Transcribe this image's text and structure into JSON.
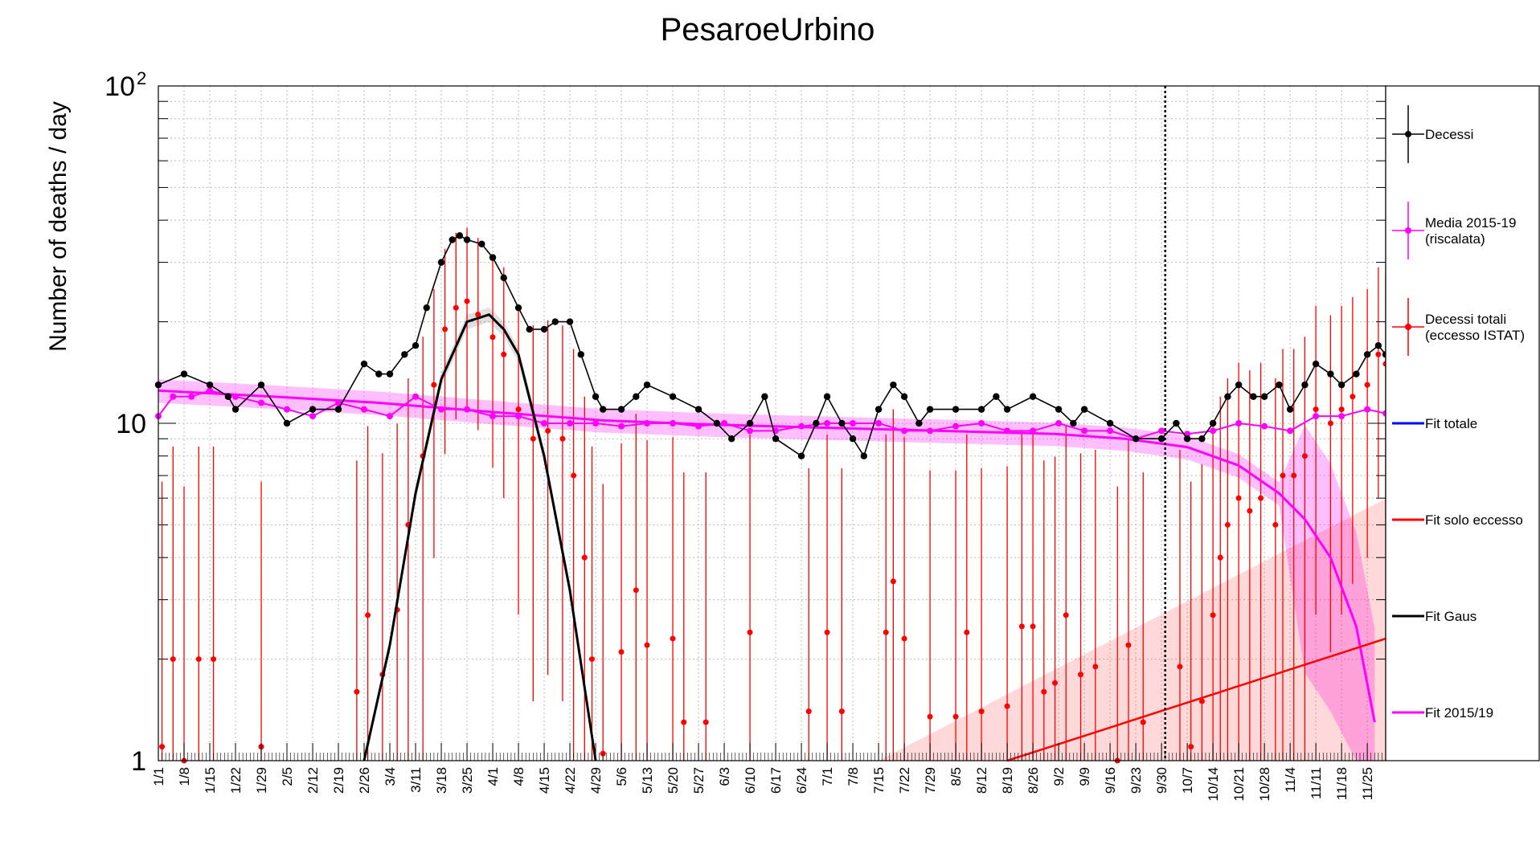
{
  "chart_data": {
    "type": "line",
    "title": "PesaroeUrbino",
    "ylabel": "Number of deaths / day",
    "xlabel": "",
    "y_scale": "log",
    "ylim": [
      1,
      100
    ],
    "y_ticks": [
      "1",
      "10",
      "10^2"
    ],
    "grid": true,
    "x_domain": {
      "start": "2020-01-01",
      "end": "2020-11-30"
    },
    "x_ticks": [
      "1/1",
      "1/8",
      "1/15",
      "1/22",
      "1/29",
      "2/5",
      "2/12",
      "2/19",
      "2/26",
      "3/4",
      "3/11",
      "3/18",
      "3/25",
      "4/1",
      "4/8",
      "4/15",
      "4/22",
      "4/29",
      "5/6",
      "5/13",
      "5/20",
      "5/27",
      "6/3",
      "6/10",
      "6/17",
      "6/24",
      "7/1",
      "7/8",
      "7/15",
      "7/22",
      "7/29",
      "8/5",
      "8/12",
      "8/19",
      "8/26",
      "9/2",
      "9/9",
      "9/16",
      "9/23",
      "9/30",
      "10/7",
      "10/14",
      "10/21",
      "10/28",
      "11/4",
      "11/11",
      "11/18",
      "11/25"
    ],
    "vertical_marker": {
      "x": "2020-10-01",
      "style": "dotted"
    },
    "legend": {
      "placement": "right",
      "entries": [
        {
          "label": "Decessi",
          "color": "#000000",
          "marker": "point+errorbar"
        },
        {
          "label": "Media 2015-19\n(riscalata)",
          "color": "#ff00ff",
          "marker": "point+errorbar"
        },
        {
          "label": "Decessi totali\n(eccesso ISTAT)",
          "color": "#ff0000",
          "marker": "point+errorbar"
        },
        {
          "label": "Fit totale",
          "color": "#0000ff",
          "marker": "line"
        },
        {
          "label": "Fit solo eccesso",
          "color": "#ff0000",
          "marker": "line"
        },
        {
          "label": "Fit Gaus",
          "color": "#000000",
          "marker": "line"
        },
        {
          "label": "Fit 2015/19",
          "color": "#ff00ff",
          "marker": "line"
        }
      ]
    },
    "series": [
      {
        "name": "Decessi",
        "color": "#000000",
        "points": [
          [
            "2020-01-01",
            13
          ],
          [
            "2020-01-08",
            14
          ],
          [
            "2020-01-15",
            13
          ],
          [
            "2020-01-20",
            12
          ],
          [
            "2020-01-22",
            11
          ],
          [
            "2020-01-29",
            13
          ],
          [
            "2020-02-05",
            10
          ],
          [
            "2020-02-12",
            11
          ],
          [
            "2020-02-19",
            11
          ],
          [
            "2020-02-26",
            15
          ],
          [
            "2020-03-01",
            14
          ],
          [
            "2020-03-04",
            14
          ],
          [
            "2020-03-08",
            16
          ],
          [
            "2020-03-11",
            17
          ],
          [
            "2020-03-14",
            22
          ],
          [
            "2020-03-18",
            30
          ],
          [
            "2020-03-21",
            35
          ],
          [
            "2020-03-23",
            36
          ],
          [
            "2020-03-25",
            35
          ],
          [
            "2020-03-29",
            34
          ],
          [
            "2020-04-01",
            31
          ],
          [
            "2020-04-04",
            27
          ],
          [
            "2020-04-08",
            22
          ],
          [
            "2020-04-11",
            19
          ],
          [
            "2020-04-15",
            19
          ],
          [
            "2020-04-18",
            20
          ],
          [
            "2020-04-22",
            20
          ],
          [
            "2020-04-25",
            16
          ],
          [
            "2020-04-29",
            12
          ],
          [
            "2020-05-01",
            11
          ],
          [
            "2020-05-06",
            11
          ],
          [
            "2020-05-10",
            12
          ],
          [
            "2020-05-13",
            13
          ],
          [
            "2020-05-20",
            12
          ],
          [
            "2020-05-27",
            11
          ],
          [
            "2020-06-01",
            10
          ],
          [
            "2020-06-05",
            9
          ],
          [
            "2020-06-10",
            10
          ],
          [
            "2020-06-14",
            12
          ],
          [
            "2020-06-17",
            9
          ],
          [
            "2020-06-24",
            8
          ],
          [
            "2020-06-28",
            10
          ],
          [
            "2020-07-01",
            12
          ],
          [
            "2020-07-05",
            10
          ],
          [
            "2020-07-08",
            9
          ],
          [
            "2020-07-11",
            8
          ],
          [
            "2020-07-15",
            11
          ],
          [
            "2020-07-19",
            13
          ],
          [
            "2020-07-22",
            12
          ],
          [
            "2020-07-26",
            10
          ],
          [
            "2020-07-29",
            11
          ],
          [
            "2020-08-05",
            11
          ],
          [
            "2020-08-12",
            11
          ],
          [
            "2020-08-16",
            12
          ],
          [
            "2020-08-19",
            11
          ],
          [
            "2020-08-26",
            12
          ],
          [
            "2020-09-02",
            11
          ],
          [
            "2020-09-06",
            10
          ],
          [
            "2020-09-09",
            11
          ],
          [
            "2020-09-16",
            10
          ],
          [
            "2020-09-23",
            9
          ],
          [
            "2020-09-30",
            9
          ],
          [
            "2020-10-04",
            10
          ],
          [
            "2020-10-07",
            9
          ],
          [
            "2020-10-11",
            9
          ],
          [
            "2020-10-14",
            10
          ],
          [
            "2020-10-18",
            12
          ],
          [
            "2020-10-21",
            13
          ],
          [
            "2020-10-25",
            12
          ],
          [
            "2020-10-28",
            12
          ],
          [
            "2020-11-01",
            13
          ],
          [
            "2020-11-04",
            11
          ],
          [
            "2020-11-08",
            13
          ],
          [
            "2020-11-11",
            15
          ],
          [
            "2020-11-15",
            14
          ],
          [
            "2020-11-18",
            13
          ],
          [
            "2020-11-22",
            14
          ],
          [
            "2020-11-25",
            16
          ],
          [
            "2020-11-28",
            17
          ],
          [
            "2020-11-30",
            16
          ]
        ]
      },
      {
        "name": "Media 2015-19 (riscalata)",
        "color": "#ff00ff",
        "points": [
          [
            "2020-01-01",
            10.5
          ],
          [
            "2020-01-05",
            12
          ],
          [
            "2020-01-10",
            12
          ],
          [
            "2020-01-15",
            12.5
          ],
          [
            "2020-01-22",
            12
          ],
          [
            "2020-01-29",
            11.5
          ],
          [
            "2020-02-05",
            11
          ],
          [
            "2020-02-12",
            10.5
          ],
          [
            "2020-02-19",
            11.5
          ],
          [
            "2020-02-26",
            11
          ],
          [
            "2020-03-04",
            10.5
          ],
          [
            "2020-03-11",
            12
          ],
          [
            "2020-03-18",
            11
          ],
          [
            "2020-03-25",
            11
          ],
          [
            "2020-04-01",
            10.5
          ],
          [
            "2020-04-08",
            10.5
          ],
          [
            "2020-04-15",
            10
          ],
          [
            "2020-04-22",
            10
          ],
          [
            "2020-04-29",
            10
          ],
          [
            "2020-05-06",
            9.8
          ],
          [
            "2020-05-13",
            10
          ],
          [
            "2020-05-20",
            10
          ],
          [
            "2020-05-27",
            9.8
          ],
          [
            "2020-06-03",
            10
          ],
          [
            "2020-06-10",
            9.5
          ],
          [
            "2020-06-17",
            9.5
          ],
          [
            "2020-06-24",
            9.8
          ],
          [
            "2020-07-01",
            10
          ],
          [
            "2020-07-08",
            10
          ],
          [
            "2020-07-15",
            10
          ],
          [
            "2020-07-22",
            9.5
          ],
          [
            "2020-07-29",
            9.5
          ],
          [
            "2020-08-05",
            9.8
          ],
          [
            "2020-08-12",
            10
          ],
          [
            "2020-08-19",
            9.5
          ],
          [
            "2020-08-26",
            9.5
          ],
          [
            "2020-09-02",
            10
          ],
          [
            "2020-09-09",
            9.5
          ],
          [
            "2020-09-16",
            9.5
          ],
          [
            "2020-09-23",
            9
          ],
          [
            "2020-09-30",
            9.5
          ],
          [
            "2020-10-07",
            9.3
          ],
          [
            "2020-10-14",
            9.5
          ],
          [
            "2020-10-21",
            10
          ],
          [
            "2020-10-28",
            9.8
          ],
          [
            "2020-11-04",
            9.5
          ],
          [
            "2020-11-11",
            10.5
          ],
          [
            "2020-11-18",
            10.5
          ],
          [
            "2020-11-25",
            11
          ],
          [
            "2020-11-30",
            10.7
          ]
        ]
      },
      {
        "name": "Decessi totali (eccesso ISTAT)",
        "color": "#ff0000",
        "points": [
          [
            "2020-01-02",
            1.1
          ],
          [
            "2020-01-05",
            2
          ],
          [
            "2020-01-08",
            1
          ],
          [
            "2020-01-12",
            2
          ],
          [
            "2020-01-16",
            2
          ],
          [
            "2020-01-29",
            1.1
          ],
          [
            "2020-02-24",
            1.6
          ],
          [
            "2020-02-27",
            2.7
          ],
          [
            "2020-03-02",
            1.8
          ],
          [
            "2020-03-06",
            2.8
          ],
          [
            "2020-03-09",
            5
          ],
          [
            "2020-03-13",
            8
          ],
          [
            "2020-03-16",
            13
          ],
          [
            "2020-03-19",
            19
          ],
          [
            "2020-03-22",
            22
          ],
          [
            "2020-03-25",
            23
          ],
          [
            "2020-03-28",
            21
          ],
          [
            "2020-04-01",
            18
          ],
          [
            "2020-04-04",
            16
          ],
          [
            "2020-04-08",
            11
          ],
          [
            "2020-04-12",
            9
          ],
          [
            "2020-04-16",
            9.5
          ],
          [
            "2020-04-20",
            9
          ],
          [
            "2020-04-23",
            7
          ],
          [
            "2020-04-26",
            4
          ],
          [
            "2020-04-28",
            2
          ],
          [
            "2020-05-01",
            1.05
          ],
          [
            "2020-05-06",
            2.1
          ],
          [
            "2020-05-10",
            3.2
          ],
          [
            "2020-05-13",
            2.2
          ],
          [
            "2020-05-20",
            2.3
          ],
          [
            "2020-05-23",
            1.3
          ],
          [
            "2020-05-29",
            1.3
          ],
          [
            "2020-06-10",
            2.4
          ],
          [
            "2020-06-26",
            1.4
          ],
          [
            "2020-07-01",
            2.4
          ],
          [
            "2020-07-05",
            1.4
          ],
          [
            "2020-07-17",
            2.4
          ],
          [
            "2020-07-19",
            3.4
          ],
          [
            "2020-07-22",
            2.3
          ],
          [
            "2020-07-29",
            1.35
          ],
          [
            "2020-08-05",
            1.35
          ],
          [
            "2020-08-08",
            2.4
          ],
          [
            "2020-08-12",
            1.4
          ],
          [
            "2020-08-19",
            1.45
          ],
          [
            "2020-08-23",
            2.5
          ],
          [
            "2020-08-26",
            2.5
          ],
          [
            "2020-08-29",
            1.6
          ],
          [
            "2020-09-01",
            1.7
          ],
          [
            "2020-09-04",
            2.7
          ],
          [
            "2020-09-08",
            1.8
          ],
          [
            "2020-09-12",
            1.9
          ],
          [
            "2020-09-18",
            1.0
          ],
          [
            "2020-09-21",
            2.2
          ],
          [
            "2020-09-25",
            1.3
          ],
          [
            "2020-10-05",
            1.9
          ],
          [
            "2020-10-08",
            1.1
          ],
          [
            "2020-10-11",
            1.5
          ],
          [
            "2020-10-14",
            2.7
          ],
          [
            "2020-10-16",
            4
          ],
          [
            "2020-10-18",
            5
          ],
          [
            "2020-10-21",
            6
          ],
          [
            "2020-10-24",
            5.5
          ],
          [
            "2020-10-27",
            6
          ],
          [
            "2020-10-31",
            5
          ],
          [
            "2020-11-02",
            7
          ],
          [
            "2020-11-05",
            7
          ],
          [
            "2020-11-08",
            8
          ],
          [
            "2020-11-11",
            11
          ],
          [
            "2020-11-15",
            10
          ],
          [
            "2020-11-18",
            11
          ],
          [
            "2020-11-21",
            12
          ],
          [
            "2020-11-25",
            13
          ],
          [
            "2020-11-28",
            16
          ],
          [
            "2020-11-30",
            15
          ]
        ]
      },
      {
        "name": "Fit Gaus",
        "color": "#000000",
        "points": [
          [
            "2020-02-26",
            1.0
          ],
          [
            "2020-03-04",
            2.2
          ],
          [
            "2020-03-11",
            6.2
          ],
          [
            "2020-03-18",
            13.5
          ],
          [
            "2020-03-25",
            20
          ],
          [
            "2020-03-31",
            21
          ],
          [
            "2020-04-04",
            19
          ],
          [
            "2020-04-08",
            16
          ],
          [
            "2020-04-15",
            8
          ],
          [
            "2020-04-22",
            3.2
          ],
          [
            "2020-04-29",
            1.0
          ]
        ]
      },
      {
        "name": "Fit solo eccesso",
        "color": "#ff0000",
        "points": [
          [
            "2020-08-19",
            1.0
          ],
          [
            "2020-11-30",
            2.3
          ]
        ]
      },
      {
        "name": "Fit 2015/19",
        "color": "#ff00ff",
        "points": [
          [
            "2020-01-01",
            12.5
          ],
          [
            "2020-02-01",
            12
          ],
          [
            "2020-03-01",
            11.5
          ],
          [
            "2020-04-01",
            10.8
          ],
          [
            "2020-05-01",
            10.2
          ],
          [
            "2020-06-01",
            9.9
          ],
          [
            "2020-07-01",
            9.7
          ],
          [
            "2020-08-01",
            9.5
          ],
          [
            "2020-09-01",
            9.3
          ],
          [
            "2020-09-20",
            9.0
          ],
          [
            "2020-10-07",
            8.5
          ],
          [
            "2020-10-21",
            7.5
          ],
          [
            "2020-11-01",
            6.2
          ],
          [
            "2020-11-08",
            5.2
          ],
          [
            "2020-11-15",
            4.0
          ],
          [
            "2020-11-22",
            2.5
          ],
          [
            "2020-11-27",
            1.3
          ]
        ]
      }
    ]
  }
}
